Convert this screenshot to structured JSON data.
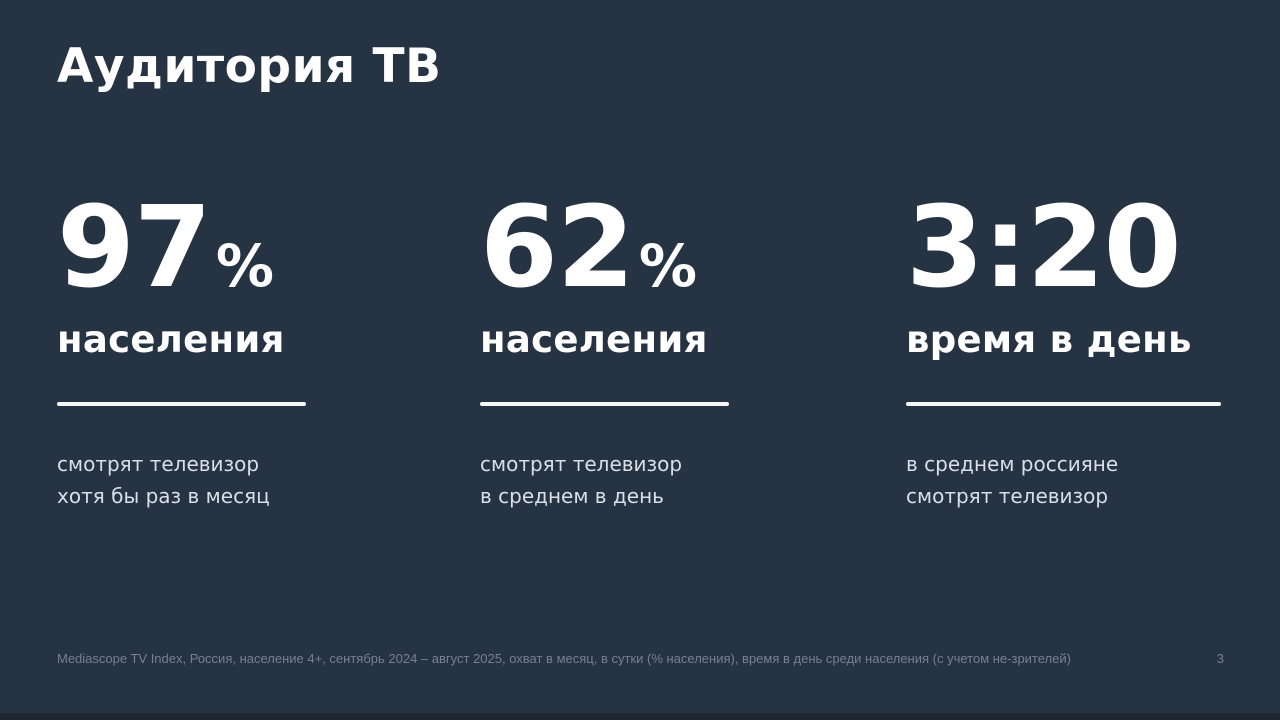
{
  "slide": {
    "title": "Аудитория ТВ",
    "stats": [
      {
        "value": "97",
        "unit": "%",
        "label": "населения",
        "description": [
          "смотрят телевизор",
          "хотя бы раз в месяц"
        ]
      },
      {
        "value": "62",
        "unit": "%",
        "label": "населения",
        "description": [
          "смотрят телевизор",
          "в среднем в день"
        ]
      },
      {
        "value": "3:20",
        "unit": "",
        "label": "время в день",
        "description": [
          "в среднем россияне",
          "смотрят телевизор"
        ]
      }
    ],
    "footer": {
      "source": "Mediascope TV Index, Россия, население 4+, сентябрь 2024 – август 2025, охват в месяц, в сутки (% населения), время в день среди населения (с учетом не-зрителей)",
      "page_number": "3"
    },
    "colors": {
      "background": "#263342",
      "heading_text": "#ffffff",
      "description_text": "#d9dfe7",
      "footer_text": "#76808f",
      "divider": "#f4f6f8",
      "bottom_bar": "#1d2731"
    }
  }
}
